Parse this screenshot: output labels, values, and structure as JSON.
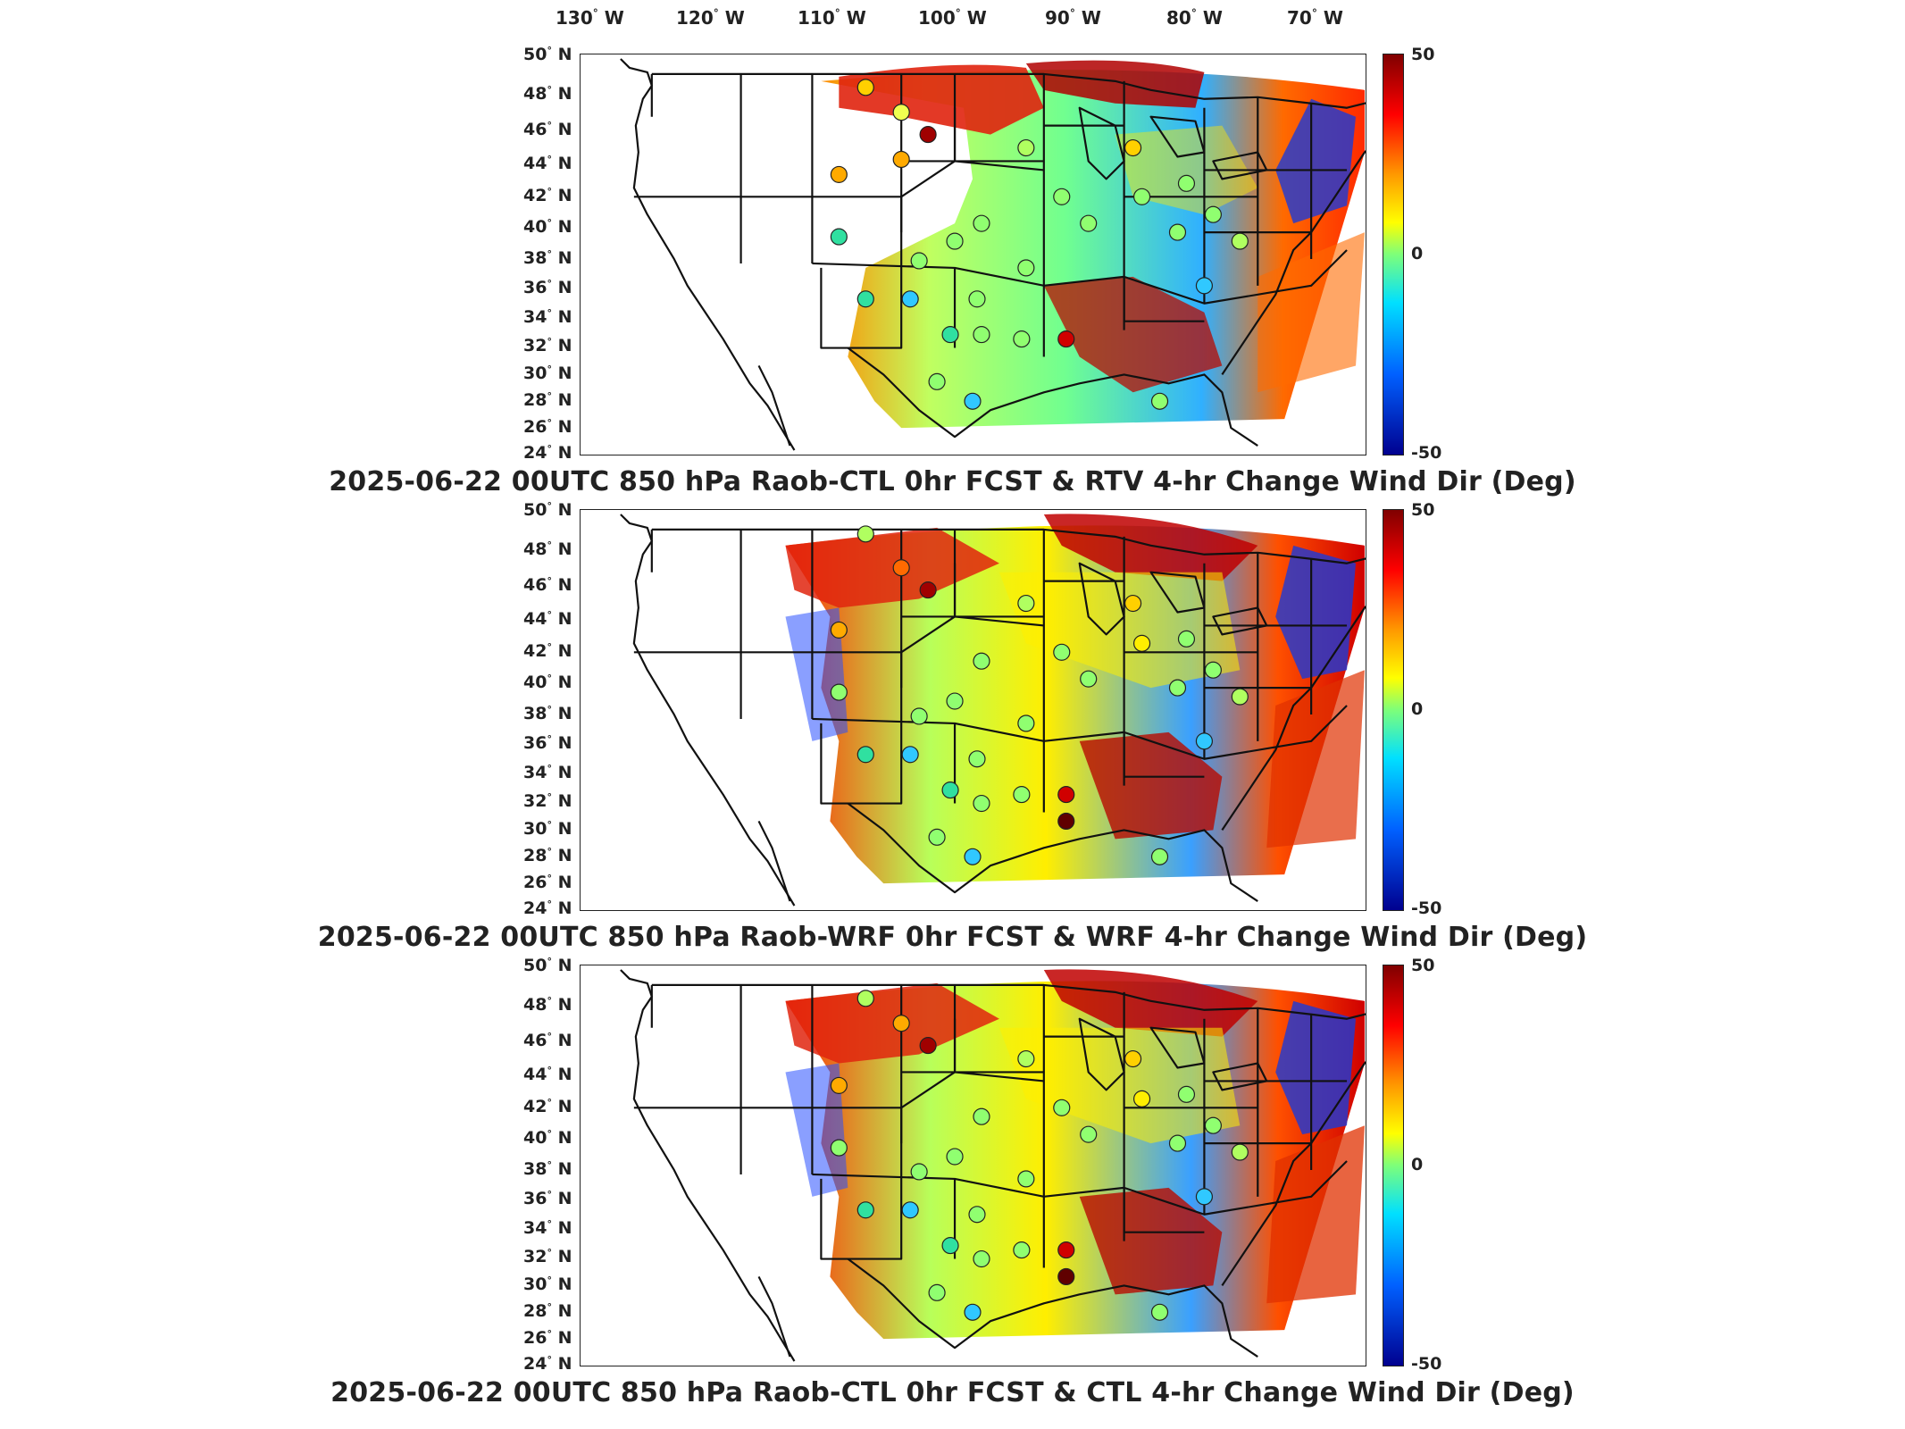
{
  "lon_labels": [
    "130",
    "120",
    "110",
    "100",
    "90",
    "80",
    "70"
  ],
  "lon_suffix": "W",
  "lat_labels": [
    "50",
    "48",
    "46",
    "44",
    "42",
    "40",
    "38",
    "36",
    "34",
    "32",
    "30",
    "28",
    "26",
    "24"
  ],
  "lat_suffix": "N",
  "colorbar": {
    "max": "50",
    "mid": "0",
    "min": "-50",
    "colors": [
      "#800000",
      "#ff0000",
      "#ff9900",
      "#ffff00",
      "#7dff7a",
      "#00e0ff",
      "#0060ff",
      "#00008f"
    ]
  },
  "panels": [
    {
      "title": "2025-06-22 00UTC 850 hPa Raob-CTL 0hr FCST & RTV 4-hr Change Wind Dir (Deg)"
    },
    {
      "title": "2025-06-22 00UTC 850 hPa Raob-WRF 0hr FCST & WRF 4-hr Change Wind Dir (Deg)"
    },
    {
      "title": "2025-06-22 00UTC 850 hPa Raob-CTL 0hr FCST & CTL 4-hr Change Wind Dir (Deg)"
    }
  ]
}
